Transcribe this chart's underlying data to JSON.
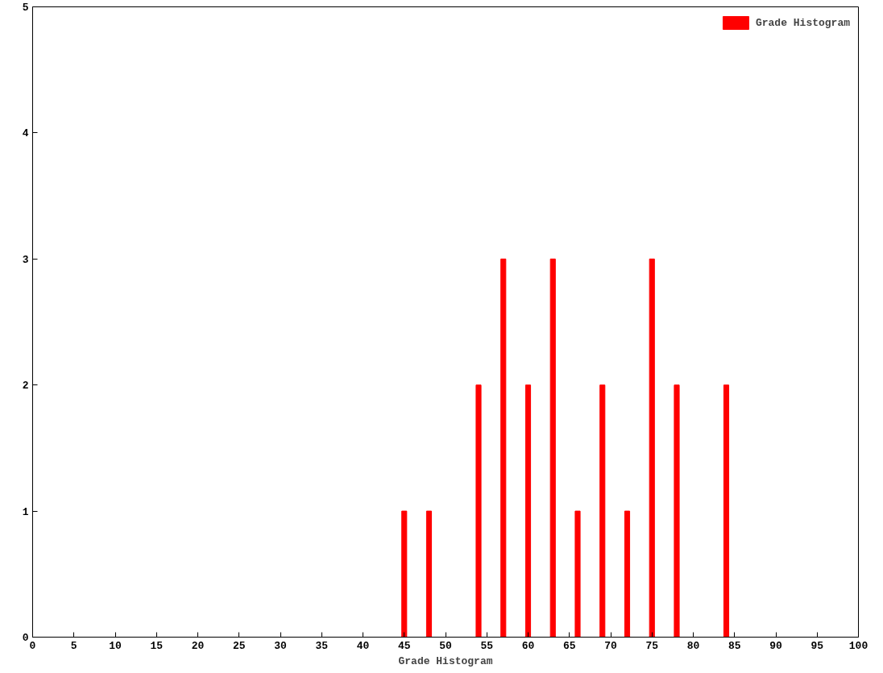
{
  "chart_data": {
    "type": "bar",
    "xlabel": "Grade Histogram",
    "x": [
      45,
      48,
      54,
      57,
      60,
      63,
      66,
      69,
      72,
      75,
      78,
      84
    ],
    "series": [
      {
        "name": "Grade Histogram",
        "color": "#ff0000",
        "values": [
          1,
          1,
          2,
          3,
          2,
          3,
          1,
          2,
          1,
          3,
          2,
          2
        ]
      }
    ],
    "xlim": [
      0,
      100
    ],
    "xticks": [
      0,
      5,
      10,
      15,
      20,
      25,
      30,
      35,
      40,
      45,
      50,
      55,
      60,
      65,
      70,
      75,
      80,
      85,
      90,
      95,
      100
    ],
    "ylim": [
      0,
      5
    ],
    "yticks": [
      0,
      1,
      2,
      3,
      4,
      5
    ],
    "grid": false,
    "legend": "top right"
  }
}
